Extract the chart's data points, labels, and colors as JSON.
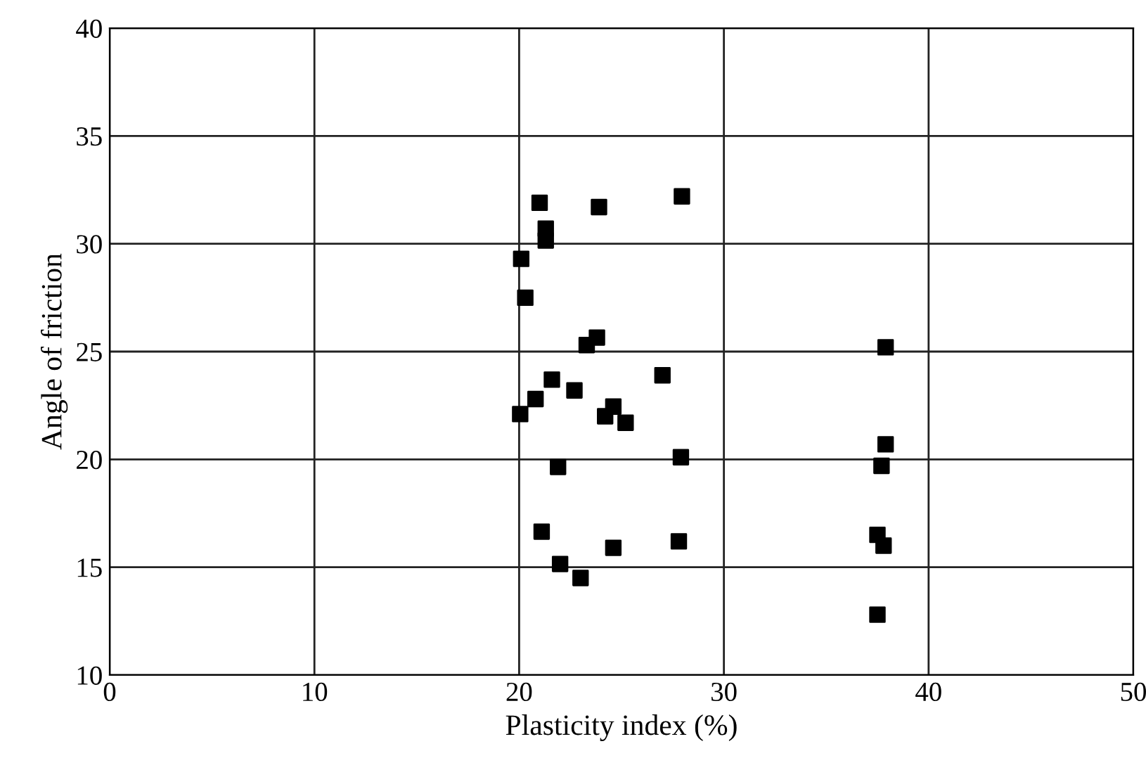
{
  "chart_data": {
    "type": "scatter",
    "xlabel": "Plasticity index (%)",
    "ylabel": "Angle of friction",
    "x": [
      21.0,
      21.3,
      21.3,
      23.9,
      27.95,
      20.1,
      20.3,
      23.3,
      23.8,
      37.9,
      27.0,
      21.6,
      22.7,
      20.8,
      20.05,
      24.6,
      24.2,
      25.2,
      37.9,
      37.7,
      27.9,
      21.9,
      21.1,
      24.6,
      27.8,
      37.5,
      37.8,
      22.0,
      23.0,
      37.5
    ],
    "values": [
      31.9,
      30.7,
      30.15,
      31.7,
      32.2,
      29.3,
      27.5,
      25.3,
      25.65,
      25.2,
      23.9,
      23.7,
      23.2,
      22.8,
      22.1,
      22.45,
      22.0,
      21.7,
      20.7,
      19.7,
      20.1,
      19.65,
      16.65,
      15.9,
      16.2,
      16.5,
      16.0,
      15.15,
      14.5,
      12.8
    ],
    "color": "#000000",
    "marker": "square",
    "xlim": [
      0,
      50
    ],
    "ylim": [
      10,
      40
    ],
    "xticks": [
      0,
      10,
      20,
      30,
      40,
      50
    ],
    "yticks": [
      10,
      15,
      20,
      25,
      30,
      35,
      40
    ],
    "grid": true
  }
}
